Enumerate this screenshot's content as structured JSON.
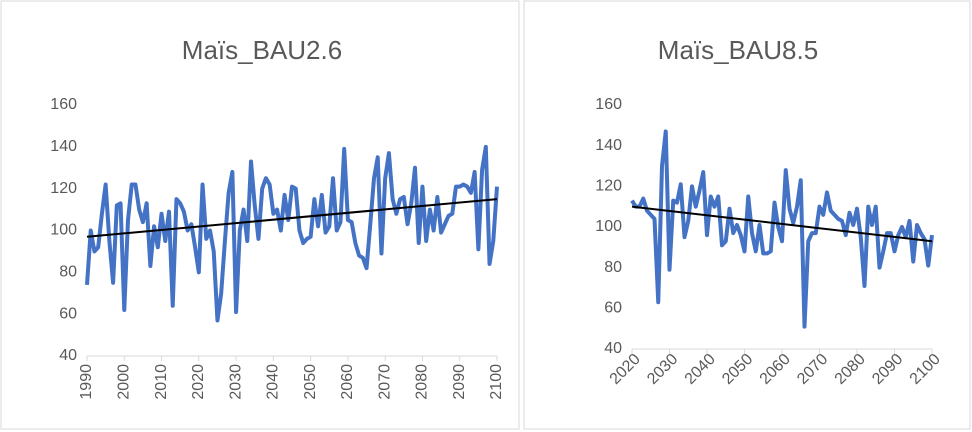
{
  "chart_data": [
    {
      "type": "line",
      "title": "Maïs_BAU2.6",
      "x": [
        1990,
        1991,
        1992,
        1993,
        1994,
        1995,
        1996,
        1997,
        1998,
        1999,
        2000,
        2001,
        2002,
        2003,
        2004,
        2005,
        2006,
        2007,
        2008,
        2009,
        2010,
        2011,
        2012,
        2013,
        2014,
        2015,
        2016,
        2017,
        2018,
        2019,
        2020,
        2021,
        2022,
        2023,
        2024,
        2025,
        2026,
        2027,
        2028,
        2029,
        2030,
        2031,
        2032,
        2033,
        2034,
        2035,
        2036,
        2037,
        2038,
        2039,
        2040,
        2041,
        2042,
        2043,
        2044,
        2045,
        2046,
        2047,
        2048,
        2049,
        2050,
        2051,
        2052,
        2053,
        2054,
        2055,
        2056,
        2057,
        2058,
        2059,
        2060,
        2061,
        2062,
        2063,
        2064,
        2065,
        2066,
        2067,
        2068,
        2069,
        2070,
        2071,
        2072,
        2073,
        2074,
        2075,
        2076,
        2077,
        2078,
        2079,
        2080,
        2081,
        2082,
        2083,
        2084,
        2085,
        2086,
        2087,
        2088,
        2089,
        2090,
        2091,
        2092,
        2093,
        2094,
        2095,
        2096,
        2097,
        2098,
        2099,
        2100
      ],
      "series": [
        {
          "color": "#4472c4",
          "values": [
            74,
            100,
            90,
            92,
            108,
            122,
            95,
            75,
            112,
            113,
            62,
            105,
            122,
            122,
            110,
            104,
            113,
            83,
            102,
            92,
            108,
            95,
            109,
            64,
            115,
            113,
            109,
            100,
            103,
            92,
            80,
            122,
            96,
            100,
            90,
            57,
            70,
            95,
            118,
            128,
            61,
            100,
            110,
            95,
            133,
            112,
            96,
            120,
            125,
            122,
            108,
            110,
            100,
            117,
            105,
            121,
            120,
            100,
            94,
            96,
            97,
            115,
            102,
            117,
            99,
            102,
            125,
            100,
            104,
            139,
            105,
            104,
            94,
            88,
            87,
            82,
            103,
            125,
            135,
            89,
            125,
            137,
            115,
            108,
            115,
            116,
            103,
            113,
            130,
            94,
            121,
            95,
            110,
            100,
            116,
            99,
            103,
            107,
            108,
            121,
            121,
            122,
            121,
            118,
            128,
            91,
            129,
            140,
            84,
            95,
            121
          ]
        }
      ],
      "trendline": {
        "x": [
          1990,
          2100
        ],
        "values": [
          97,
          115
        ],
        "color": "#000000"
      },
      "xlim": [
        1990,
        2100
      ],
      "xticks": [
        1990,
        2000,
        2010,
        2020,
        2030,
        2040,
        2050,
        2060,
        2070,
        2080,
        2090,
        2100
      ],
      "xtick_rotation": -90,
      "ylim": [
        40,
        160
      ],
      "yticks": [
        40,
        60,
        80,
        100,
        120,
        140,
        160
      ]
    },
    {
      "type": "line",
      "title": "Maïs_BAU8.5",
      "x": [
        2020,
        2021,
        2022,
        2023,
        2024,
        2025,
        2026,
        2027,
        2028,
        2029,
        2030,
        2031,
        2032,
        2033,
        2034,
        2035,
        2036,
        2037,
        2038,
        2039,
        2040,
        2041,
        2042,
        2043,
        2044,
        2045,
        2046,
        2047,
        2048,
        2049,
        2050,
        2051,
        2052,
        2053,
        2054,
        2055,
        2056,
        2057,
        2058,
        2059,
        2060,
        2061,
        2062,
        2063,
        2064,
        2065,
        2066,
        2067,
        2068,
        2069,
        2070,
        2071,
        2072,
        2073,
        2074,
        2075,
        2076,
        2077,
        2078,
        2079,
        2080,
        2081,
        2082,
        2083,
        2084,
        2085,
        2086,
        2087,
        2088,
        2089,
        2090,
        2091,
        2092,
        2093,
        2094,
        2095,
        2096,
        2097,
        2098,
        2099,
        2100
      ],
      "series": [
        {
          "color": "#4472c4",
          "values": [
            113,
            110,
            110,
            114,
            108,
            106,
            104,
            63,
            130,
            147,
            79,
            113,
            112,
            121,
            95,
            103,
            120,
            110,
            118,
            127,
            96,
            115,
            110,
            115,
            91,
            93,
            109,
            97,
            101,
            96,
            88,
            115,
            97,
            88,
            101,
            87,
            87,
            88,
            112,
            100,
            93,
            128,
            109,
            102,
            110,
            123,
            51,
            93,
            97,
            97,
            110,
            106,
            117,
            108,
            106,
            104,
            103,
            96,
            107,
            101,
            109,
            95,
            71,
            110,
            101,
            110,
            80,
            88,
            97,
            97,
            88,
            96,
            100,
            95,
            103,
            83,
            101,
            97,
            94,
            81,
            96
          ]
        }
      ],
      "trendline": {
        "x": [
          2020,
          2100
        ],
        "values": [
          110,
          93
        ],
        "color": "#000000"
      },
      "xlim": [
        2020,
        2100
      ],
      "xticks": [
        2020,
        2030,
        2040,
        2050,
        2060,
        2070,
        2080,
        2090,
        2100
      ],
      "xtick_rotation": -45,
      "ylim": [
        40,
        160
      ],
      "yticks": [
        40,
        60,
        80,
        100,
        120,
        140,
        160
      ]
    }
  ]
}
